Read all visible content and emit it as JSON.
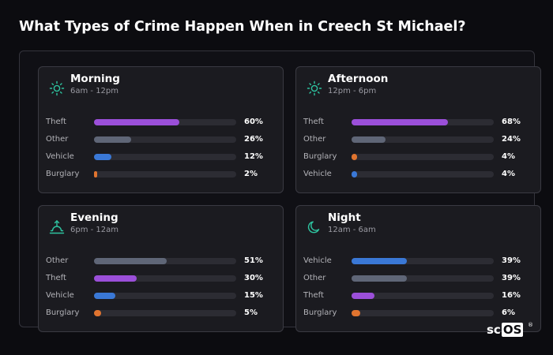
{
  "page": {
    "title": "What Types of Crime Happen When in Creech St Michael?"
  },
  "colors": {
    "theft": "#9b4fd9",
    "other": "#5f6677",
    "vehicle": "#3a78d6",
    "burglary": "#e0742f",
    "icon": "#2ec4a0"
  },
  "cards": [
    {
      "title": "Morning",
      "subtitle": "6am - 12pm",
      "icon": "sun-icon",
      "rows": [
        {
          "label": "Theft",
          "value": 60,
          "pct": "60%",
          "color": "#9b4fd9"
        },
        {
          "label": "Other",
          "value": 26,
          "pct": "26%",
          "color": "#5f6677"
        },
        {
          "label": "Vehicle",
          "value": 12,
          "pct": "12%",
          "color": "#3a78d6"
        },
        {
          "label": "Burglary",
          "value": 2,
          "pct": "2%",
          "color": "#e0742f"
        }
      ]
    },
    {
      "title": "Afternoon",
      "subtitle": "12pm - 6pm",
      "icon": "sun-icon",
      "rows": [
        {
          "label": "Theft",
          "value": 68,
          "pct": "68%",
          "color": "#9b4fd9"
        },
        {
          "label": "Other",
          "value": 24,
          "pct": "24%",
          "color": "#5f6677"
        },
        {
          "label": "Burglary",
          "value": 4,
          "pct": "4%",
          "color": "#e0742f"
        },
        {
          "label": "Vehicle",
          "value": 4,
          "pct": "4%",
          "color": "#3a78d6"
        }
      ]
    },
    {
      "title": "Evening",
      "subtitle": "6pm - 12am",
      "icon": "sunset-icon",
      "rows": [
        {
          "label": "Other",
          "value": 51,
          "pct": "51%",
          "color": "#5f6677"
        },
        {
          "label": "Theft",
          "value": 30,
          "pct": "30%",
          "color": "#9b4fd9"
        },
        {
          "label": "Vehicle",
          "value": 15,
          "pct": "15%",
          "color": "#3a78d6"
        },
        {
          "label": "Burglary",
          "value": 5,
          "pct": "5%",
          "color": "#e0742f"
        }
      ]
    },
    {
      "title": "Night",
      "subtitle": "12am - 6am",
      "icon": "moon-icon",
      "rows": [
        {
          "label": "Vehicle",
          "value": 39,
          "pct": "39%",
          "color": "#3a78d6"
        },
        {
          "label": "Other",
          "value": 39,
          "pct": "39%",
          "color": "#5f6677"
        },
        {
          "label": "Theft",
          "value": 16,
          "pct": "16%",
          "color": "#9b4fd9"
        },
        {
          "label": "Burglary",
          "value": 6,
          "pct": "6%",
          "color": "#e0742f"
        }
      ]
    }
  ],
  "logo": {
    "prefix": "sc",
    "boxed": "OS",
    "mark": "®"
  }
}
